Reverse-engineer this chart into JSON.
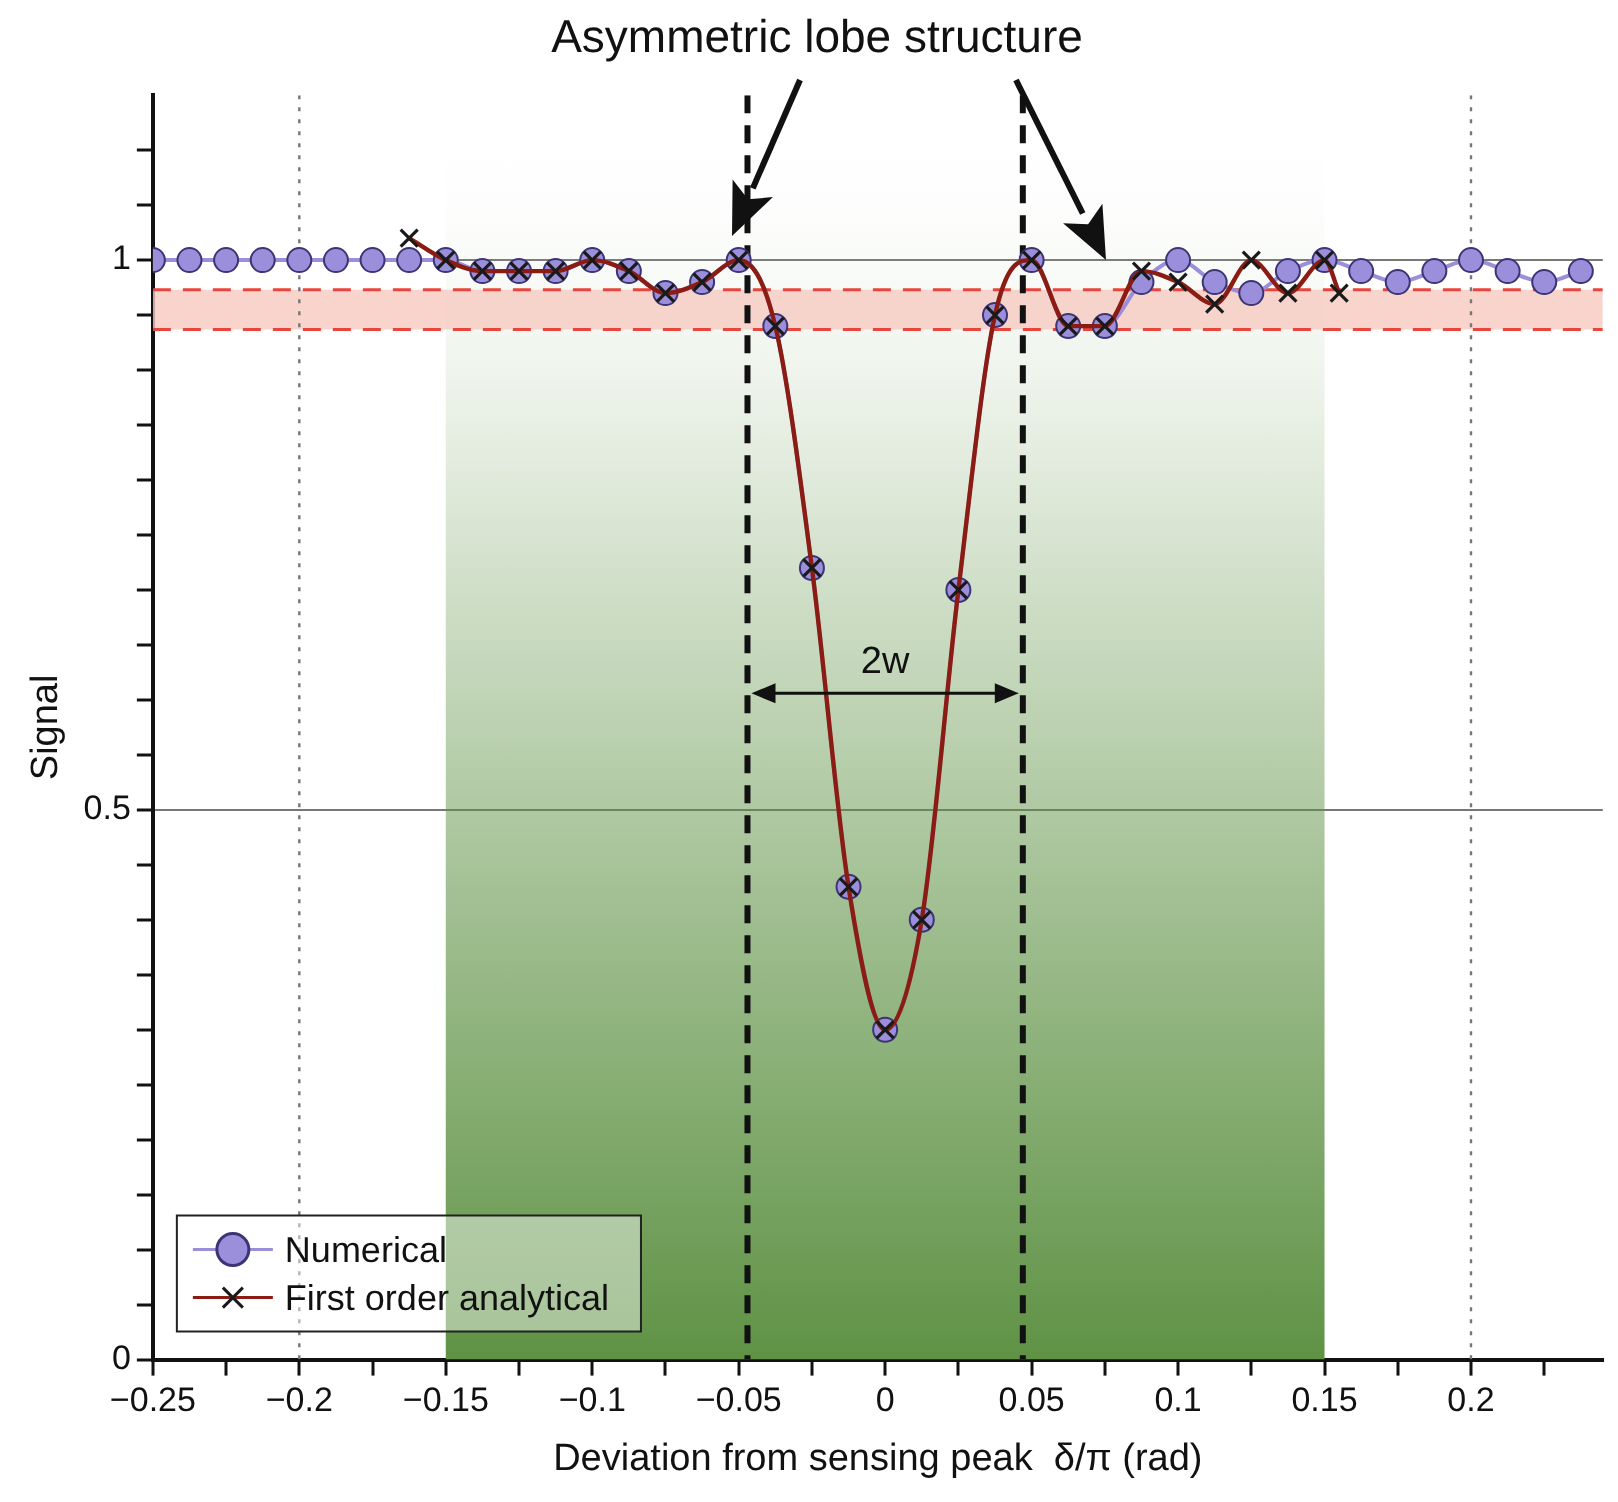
{
  "chart_data": {
    "type": "line",
    "title": "Asymmetric lobe structure",
    "xlabel": "Deviation from sensing peak  δ/π (rad)",
    "ylabel": "Signal",
    "series": [
      {
        "name": "Numerical",
        "color": "#9b8fdc",
        "marker": "circle",
        "x": [
          -0.25,
          -0.2375,
          -0.225,
          -0.2125,
          -0.2,
          -0.1875,
          -0.175,
          -0.1625,
          -0.15,
          -0.1375,
          -0.125,
          -0.1125,
          -0.1,
          -0.0875,
          -0.075,
          -0.0625,
          -0.05,
          -0.0375,
          -0.025,
          -0.0125,
          0,
          0.0125,
          0.025,
          0.0375,
          0.05,
          0.0625,
          0.075,
          0.0875,
          0.1,
          0.1125,
          0.125,
          0.1375,
          0.15,
          0.1625,
          0.175,
          0.1875,
          0.2,
          0.2125,
          0.225,
          0.2375
        ],
        "values": [
          1.0,
          1.0,
          1.0,
          1.0,
          1.0,
          1.0,
          1.0,
          1.0,
          1.0,
          0.99,
          0.99,
          0.99,
          1.0,
          0.99,
          0.97,
          0.98,
          1.0,
          0.94,
          0.72,
          0.43,
          0.3,
          0.4,
          0.7,
          0.95,
          1.0,
          0.94,
          0.94,
          0.98,
          1.0,
          0.98,
          0.97,
          0.99,
          1.0,
          0.99,
          0.98,
          0.99,
          1.0,
          0.99,
          0.98,
          0.99
        ]
      },
      {
        "name": "First order analytical",
        "color": "#8b1c14",
        "marker": "cross",
        "x": [
          -0.1625,
          -0.15,
          -0.1375,
          -0.125,
          -0.1125,
          -0.1,
          -0.0875,
          -0.075,
          -0.0625,
          -0.05,
          -0.0375,
          -0.025,
          -0.0125,
          0,
          0.0125,
          0.025,
          0.0375,
          0.05,
          0.0625,
          0.075,
          0.0875,
          0.1,
          0.1125,
          0.125,
          0.1375,
          0.15,
          0.155
        ],
        "values": [
          1.02,
          1.0,
          0.99,
          0.99,
          0.99,
          1.0,
          0.99,
          0.97,
          0.98,
          1.0,
          0.94,
          0.72,
          0.43,
          0.3,
          0.4,
          0.7,
          0.95,
          1.0,
          0.94,
          0.94,
          0.99,
          0.98,
          0.96,
          1.0,
          0.97,
          1.0,
          0.97
        ]
      }
    ],
    "xlim": [
      -0.25,
      0.245
    ],
    "xticks": [
      -0.25,
      {
        "value": -0.225,
        "label": null
      },
      -0.2,
      {
        "value": -0.175,
        "label": null
      },
      -0.15,
      {
        "value": -0.125,
        "label": null
      },
      -0.1,
      {
        "value": -0.075,
        "label": null
      },
      -0.05,
      {
        "value": -0.025,
        "label": null
      },
      0,
      {
        "value": 0.025,
        "label": null
      },
      0.05,
      {
        "value": 0.075,
        "label": null
      },
      0.1,
      {
        "value": 0.125,
        "label": null
      },
      0.15,
      {
        "value": 0.175,
        "label": null
      },
      0.2,
      {
        "value": 0.225,
        "label": null
      }
    ],
    "ylim": [
      0,
      1.15
    ],
    "yticks": [
      0,
      {
        "value": 0.05,
        "label": null
      },
      {
        "value": 0.1,
        "label": null
      },
      {
        "value": 0.15,
        "label": null
      },
      {
        "value": 0.2,
        "label": null
      },
      {
        "value": 0.25,
        "label": null
      },
      {
        "value": 0.3,
        "label": null
      },
      {
        "value": 0.35,
        "label": null
      },
      {
        "value": 0.4,
        "label": null
      },
      {
        "value": 0.45,
        "label": null
      },
      0.5,
      {
        "value": 0.55,
        "label": null
      },
      {
        "value": 0.6,
        "label": null
      },
      {
        "value": 0.65,
        "label": null
      },
      {
        "value": 0.7,
        "label": null
      },
      {
        "value": 0.75,
        "label": null
      },
      {
        "value": 0.8,
        "label": null
      },
      {
        "value": 0.85,
        "label": null
      },
      {
        "value": 0.9,
        "label": null
      },
      {
        "value": 0.95,
        "label": null
      },
      1,
      {
        "value": 1.05,
        "label": null
      },
      {
        "value": 1.1,
        "label": null
      }
    ],
    "bands": [
      {
        "axis": "x",
        "from": -0.15,
        "to": 0.15,
        "color": "#5f9245"
      },
      {
        "axis": "y",
        "from": 0.937,
        "to": 0.973,
        "color": "#f6c9c0"
      }
    ],
    "ref_lines": [
      {
        "axis": "y",
        "value": 0.973,
        "color": "#e8463c",
        "line_style": "dashed"
      },
      {
        "axis": "y",
        "value": 0.937,
        "color": "#e8463c",
        "line_style": "dashed"
      },
      {
        "axis": "x",
        "value": -0.047,
        "color": "#111111",
        "line_style": "dashed"
      },
      {
        "axis": "x",
        "value": 0.047,
        "color": "#111111",
        "line_style": "dashed"
      },
      {
        "axis": "x",
        "value": -0.2,
        "color": "#777777",
        "line_style": "dotted"
      },
      {
        "axis": "x",
        "value": 0.2,
        "color": "#777777",
        "line_style": "dotted"
      }
    ],
    "annotations": [
      "2w"
    ],
    "grid": "y",
    "legend": "bottom left"
  }
}
